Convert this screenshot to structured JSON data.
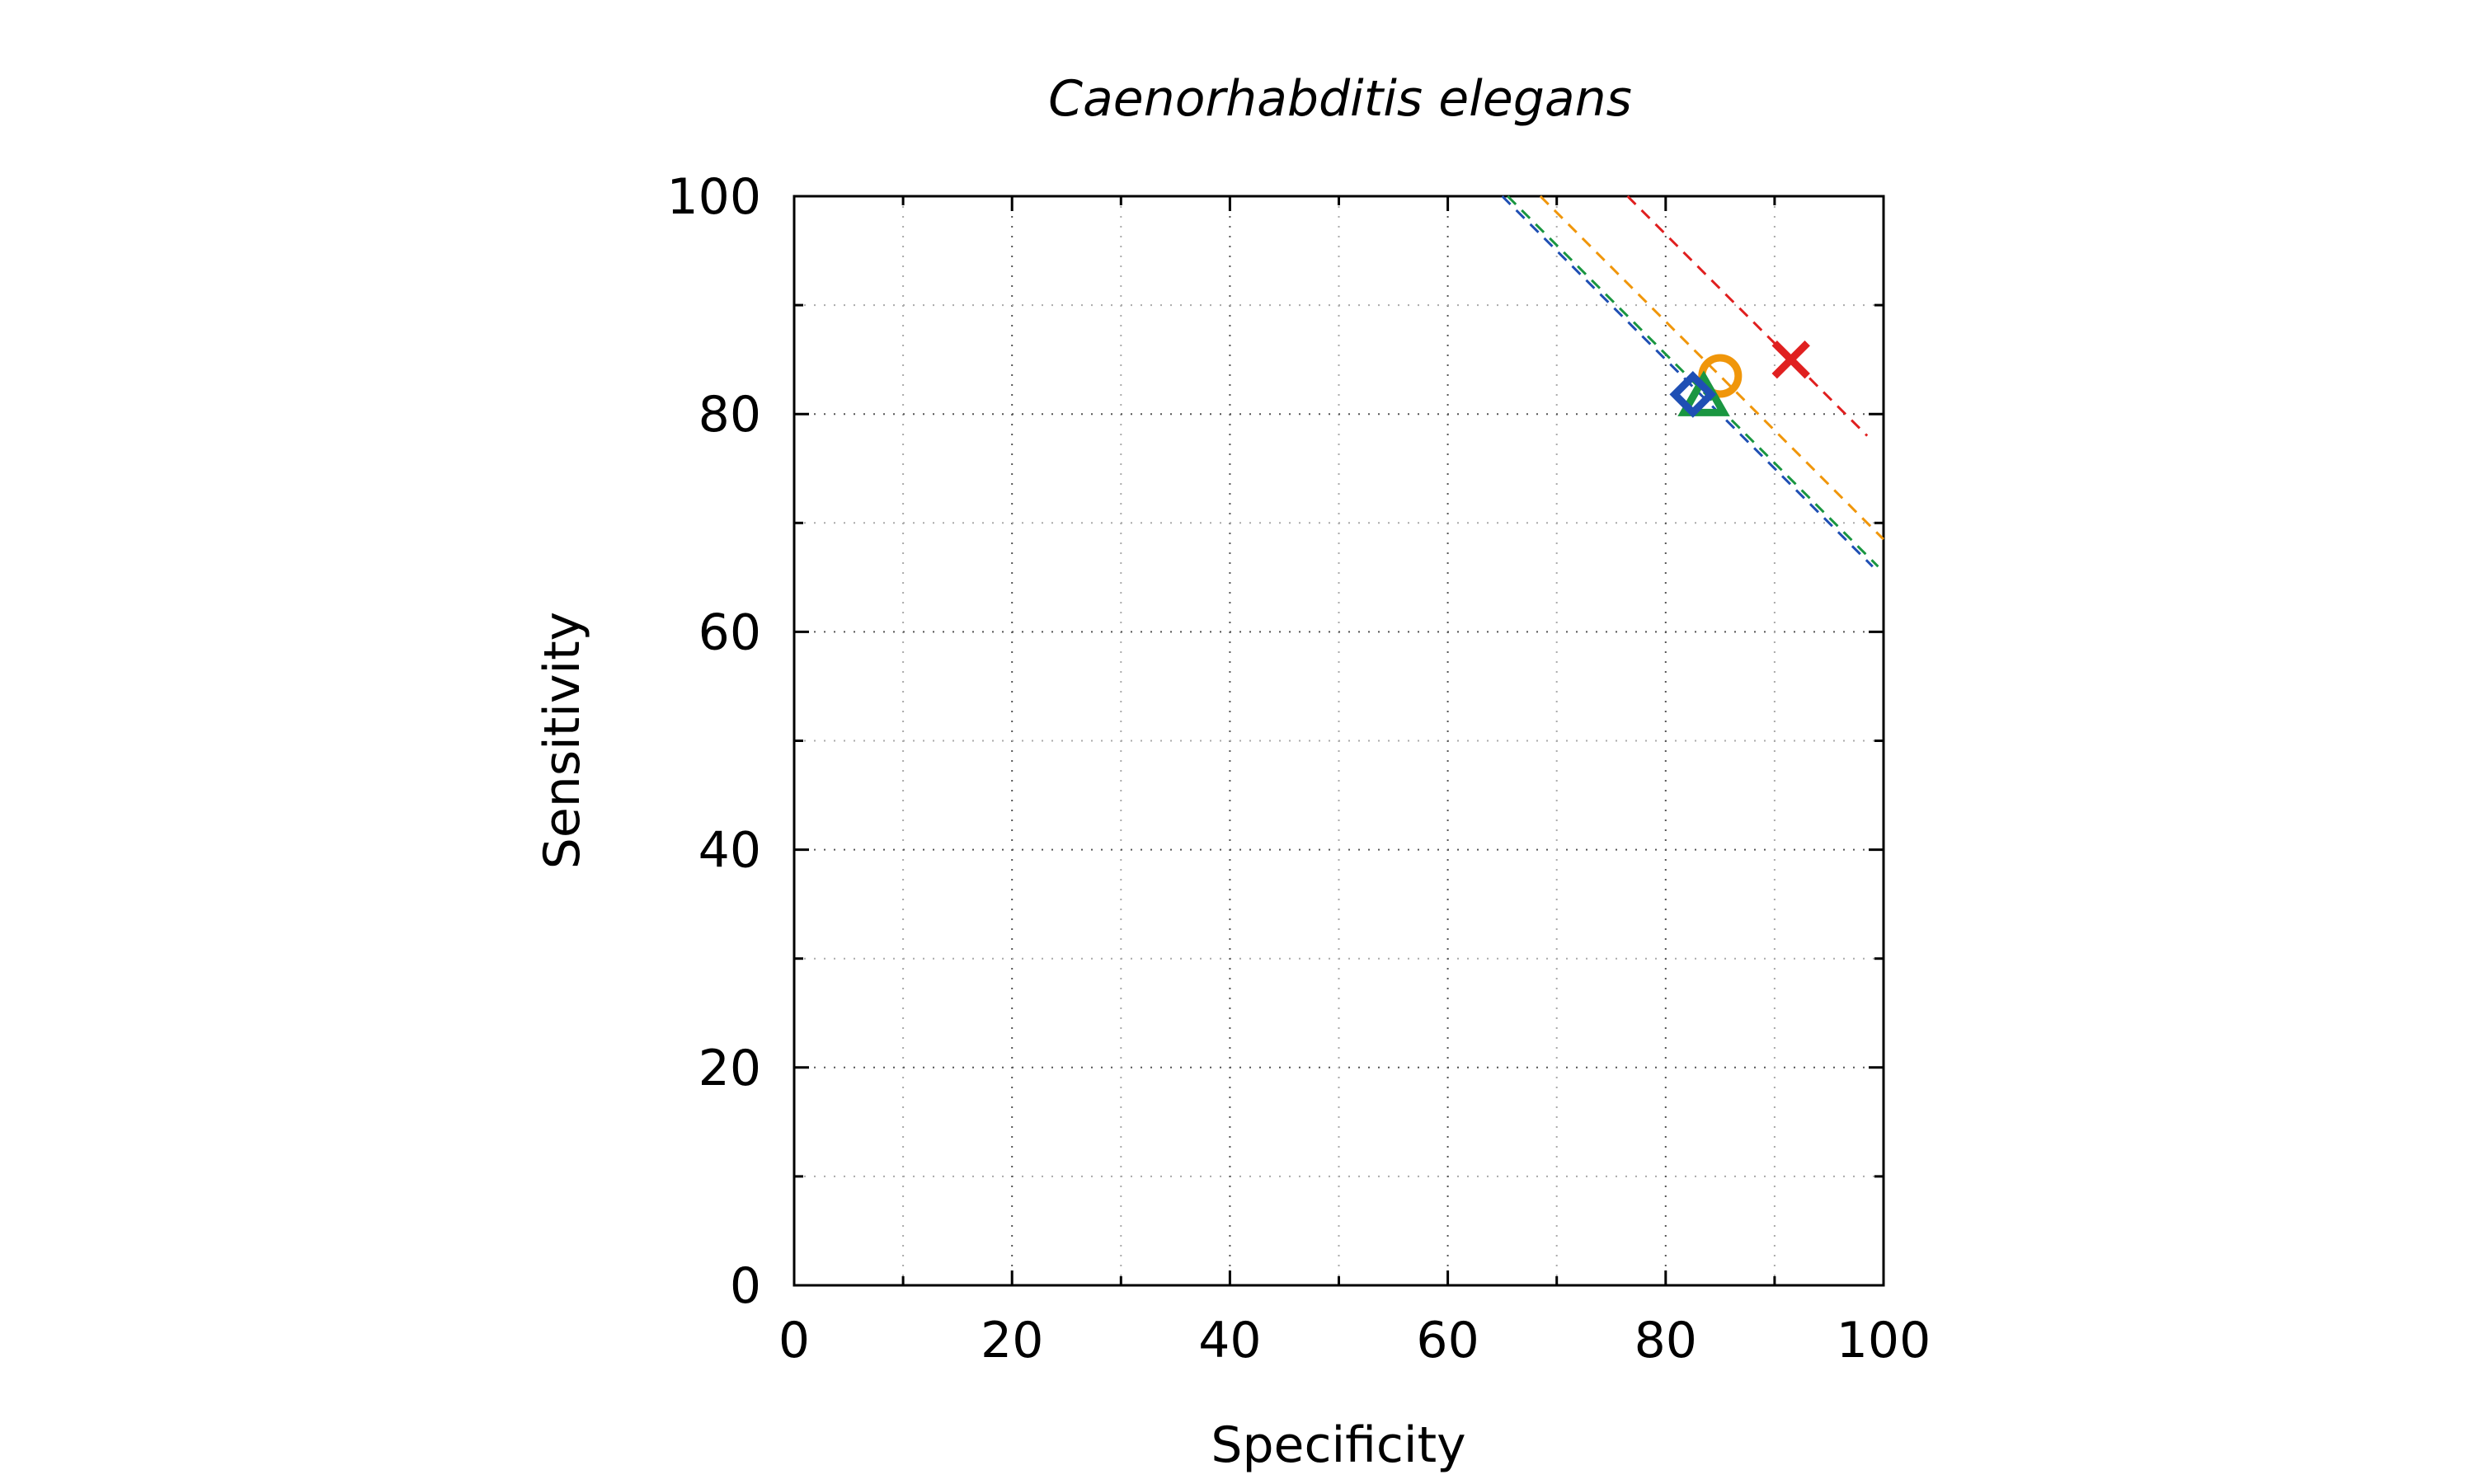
{
  "chart_data": {
    "type": "scatter",
    "title": "Caenorhabditis elegans",
    "xlabel": "Specificity",
    "ylabel": "Sensitivity",
    "xlim": [
      0,
      100
    ],
    "ylim": [
      0,
      100
    ],
    "xticks": [
      0,
      20,
      40,
      60,
      80,
      100
    ],
    "yticks": [
      0,
      20,
      40,
      60,
      80,
      100
    ],
    "xtick_labels": [
      "0",
      "20",
      "40",
      "60",
      "80",
      "100"
    ],
    "ytick_labels": [
      "0",
      "20",
      "40",
      "60",
      "80",
      "100"
    ],
    "minor_step": 10,
    "grid": true,
    "legend": false,
    "series": [
      {
        "marker": "cross",
        "color": "#e02020",
        "points": [
          {
            "x": 91.5,
            "y": 85.0
          }
        ],
        "line": {
          "from": [
            76.5,
            100.0
          ],
          "to": [
            98.5,
            78.0
          ]
        }
      },
      {
        "marker": "circle",
        "color": "#f0960a",
        "points": [
          {
            "x": 85.0,
            "y": 83.5
          }
        ],
        "line": {
          "from": [
            68.5,
            100.0
          ],
          "to": [
            100.0,
            68.5
          ]
        }
      },
      {
        "marker": "triangle",
        "color": "#1a9641",
        "points": [
          {
            "x": 83.5,
            "y": 81.5
          }
        ],
        "line": {
          "from": [
            65.5,
            100.0
          ],
          "to": [
            99.5,
            66.0
          ]
        }
      },
      {
        "marker": "diamond",
        "color": "#1f4fb4",
        "points": [
          {
            "x": 82.5,
            "y": 81.8
          }
        ],
        "line": {
          "from": [
            65.0,
            100.0
          ],
          "to": [
            99.0,
            66.0
          ]
        }
      }
    ]
  }
}
